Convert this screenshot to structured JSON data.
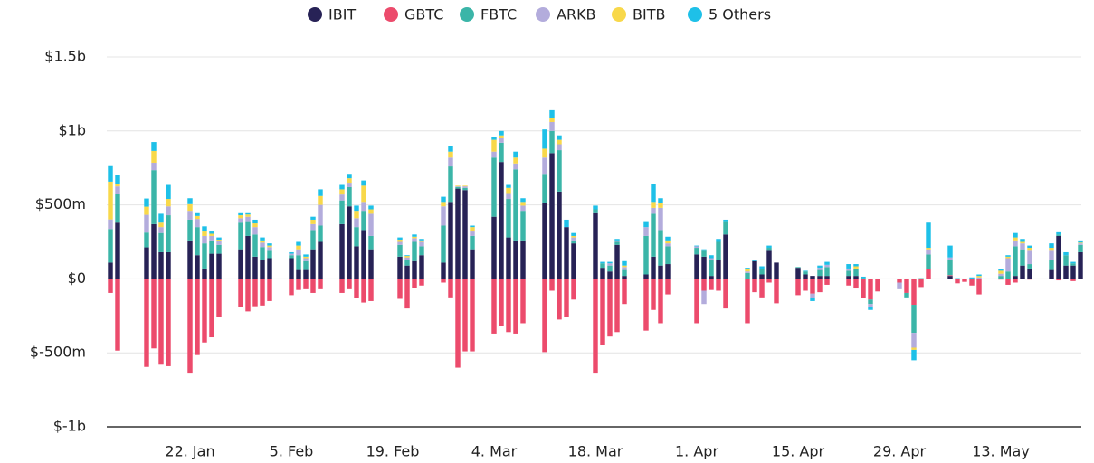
{
  "chart_data": {
    "type": "stacked-bar",
    "legend": "top",
    "categories": [
      null,
      null,
      null,
      null,
      null,
      null,
      null,
      null,
      null,
      null,
      null,
      "22. Jan",
      null,
      null,
      null,
      null,
      null,
      null,
      null,
      null,
      null,
      null,
      null,
      null,
      null,
      "5. Feb",
      null,
      null,
      null,
      null,
      null,
      null,
      null,
      null,
      null,
      null,
      null,
      null,
      null,
      "19. Feb",
      null,
      null,
      null,
      null,
      null,
      null,
      null,
      null,
      null,
      null,
      null,
      null,
      null,
      "4. Mar",
      null,
      null,
      null,
      null,
      null,
      null,
      null,
      null,
      null,
      null,
      null,
      null,
      null,
      "18. Mar",
      null,
      null,
      null,
      null,
      null,
      null,
      null,
      null,
      null,
      null,
      null,
      null,
      null,
      "1. Apr",
      null,
      null,
      null,
      null,
      null,
      null,
      null,
      null,
      null,
      null,
      null,
      null,
      null,
      "15. Apr",
      null,
      null,
      null,
      null,
      null,
      null,
      null,
      null,
      null,
      null,
      null,
      null,
      null,
      "29. Apr",
      null,
      null,
      null,
      null,
      null,
      null,
      null,
      null,
      null,
      null,
      null,
      null,
      null,
      "13. May",
      null,
      null,
      null,
      null,
      null,
      null,
      null,
      null,
      null,
      null,
      null
    ],
    "ylim": [
      -1000,
      1500
    ],
    "yticks": [
      {
        "value": -1000,
        "label": "$-1b"
      },
      {
        "value": -500,
        "label": "$-500m"
      },
      {
        "value": 0,
        "label": "$0"
      },
      {
        "value": 500,
        "label": "$500m"
      },
      {
        "value": 1000,
        "label": "$1b"
      },
      {
        "value": 1500,
        "label": "$1.5b"
      }
    ],
    "grid": true,
    "series": [
      {
        "name": "IBIT",
        "color": "#272256",
        "values": [
          110,
          380,
          null,
          null,
          null,
          213,
          370,
          180,
          180,
          null,
          null,
          260,
          160,
          70,
          170,
          170,
          null,
          null,
          200,
          290,
          150,
          130,
          140,
          null,
          null,
          140,
          60,
          60,
          200,
          250,
          null,
          null,
          370,
          490,
          220,
          330,
          200,
          null,
          null,
          null,
          150,
          90,
          120,
          160,
          null,
          null,
          110,
          520,
          610,
          600,
          200,
          null,
          null,
          420,
          790,
          280,
          260,
          260,
          null,
          null,
          510,
          850,
          590,
          350,
          240,
          null,
          null,
          450,
          75,
          50,
          230,
          20,
          null,
          null,
          30,
          150,
          90,
          100,
          null,
          null,
          null,
          165,
          150,
          20,
          130,
          300,
          null,
          null,
          0,
          120,
          30,
          190,
          110,
          null,
          null,
          75,
          30,
          20,
          20,
          20,
          null,
          null,
          20,
          20,
          0,
          0,
          0,
          null,
          null,
          0,
          0,
          0,
          0,
          0,
          null,
          null,
          20,
          0,
          0,
          0,
          0,
          null,
          null,
          0,
          0,
          20,
          90,
          70,
          null,
          null,
          60,
          290,
          90,
          90,
          180
        ]
      },
      {
        "name": "GBTC",
        "color": "#ec4b6c",
        "values": [
          -95,
          -485,
          null,
          null,
          null,
          -595,
          -470,
          -580,
          -590,
          null,
          null,
          -640,
          -515,
          -430,
          -395,
          -255,
          null,
          null,
          -190,
          -220,
          -185,
          -180,
          -150,
          null,
          null,
          -110,
          -75,
          -70,
          -95,
          -70,
          null,
          null,
          -95,
          -70,
          -130,
          -160,
          -150,
          null,
          null,
          null,
          -135,
          -200,
          -60,
          -45,
          null,
          null,
          -25,
          -125,
          -600,
          -490,
          -490,
          null,
          null,
          -370,
          -320,
          -360,
          -370,
          -300,
          null,
          null,
          -495,
          -80,
          -275,
          -260,
          -140,
          null,
          null,
          -640,
          -445,
          -390,
          -360,
          -170,
          null,
          null,
          -350,
          -210,
          -300,
          -105,
          null,
          null,
          null,
          -300,
          -80,
          -75,
          -80,
          -200,
          null,
          null,
          -300,
          -90,
          -125,
          -25,
          -165,
          null,
          null,
          -110,
          -80,
          -100,
          -90,
          -40,
          null,
          null,
          -45,
          -65,
          -130,
          -140,
          -85,
          null,
          null,
          -25,
          -95,
          -175,
          -55,
          65,
          null,
          null,
          5,
          -30,
          -20,
          -45,
          -105,
          null,
          null,
          -5,
          -40,
          -25,
          0,
          -5,
          null,
          null,
          0,
          -10,
          0,
          -15,
          0
        ]
      },
      {
        "name": "FBTC",
        "color": "#3bb5a8",
        "values": [
          227,
          195,
          null,
          null,
          null,
          100,
          365,
          130,
          250,
          null,
          null,
          140,
          190,
          170,
          90,
          60,
          null,
          null,
          180,
          100,
          150,
          85,
          50,
          null,
          null,
          20,
          100,
          60,
          130,
          110,
          null,
          null,
          160,
          130,
          130,
          130,
          90,
          null,
          null,
          null,
          80,
          40,
          130,
          60,
          null,
          null,
          250,
          240,
          10,
          15,
          90,
          null,
          null,
          400,
          130,
          260,
          480,
          200,
          null,
          null,
          200,
          150,
          280,
          0,
          20,
          null,
          null,
          20,
          30,
          40,
          20,
          40,
          null,
          null,
          260,
          290,
          240,
          120,
          null,
          null,
          null,
          45,
          40,
          110,
          120,
          90,
          null,
          null,
          40,
          0,
          35,
          20,
          0,
          null,
          null,
          5,
          20,
          0,
          40,
          60,
          null,
          null,
          35,
          50,
          5,
          -30,
          0,
          null,
          null,
          0,
          -30,
          -190,
          5,
          100,
          null,
          null,
          100,
          0,
          0,
          0,
          0,
          null,
          null,
          20,
          50,
          200,
          110,
          30,
          null,
          null,
          70,
          10,
          70,
          15,
          50
        ]
      },
      {
        "name": "ARKB",
        "color": "#b3acdc",
        "values": [
          65,
          50,
          null,
          null,
          null,
          120,
          50,
          40,
          60,
          null,
          null,
          60,
          55,
          50,
          30,
          25,
          null,
          null,
          30,
          30,
          50,
          30,
          25,
          null,
          null,
          10,
          40,
          20,
          40,
          140,
          null,
          null,
          40,
          30,
          60,
          60,
          150,
          null,
          null,
          null,
          20,
          15,
          25,
          30,
          null,
          null,
          130,
          60,
          5,
          10,
          30,
          null,
          null,
          40,
          30,
          40,
          40,
          35,
          null,
          null,
          110,
          60,
          40,
          0,
          20,
          null,
          null,
          0,
          0,
          15,
          10,
          20,
          null,
          null,
          60,
          40,
          150,
          20,
          null,
          null,
          null,
          10,
          -90,
          10,
          0,
          0,
          null,
          null,
          10,
          0,
          0,
          0,
          0,
          null,
          null,
          0,
          0,
          -30,
          15,
          15,
          null,
          null,
          15,
          0,
          0,
          -20,
          0,
          null,
          null,
          -45,
          0,
          -100,
          0,
          35,
          null,
          null,
          20,
          0,
          0,
          0,
          10,
          null,
          null,
          15,
          90,
          40,
          40,
          90,
          null,
          null,
          60,
          0,
          0,
          0,
          10
        ]
      },
      {
        "name": "BITB",
        "color": "#f8d84a",
        "values": [
          255,
          15,
          null,
          null,
          null,
          55,
          80,
          30,
          50,
          null,
          null,
          45,
          20,
          30,
          15,
          10,
          null,
          null,
          20,
          15,
          25,
          15,
          10,
          null,
          null,
          0,
          25,
          10,
          30,
          60,
          null,
          null,
          35,
          30,
          50,
          110,
          30,
          null,
          null,
          null,
          15,
          10,
          10,
          10,
          null,
          null,
          30,
          40,
          5,
          5,
          30,
          null,
          null,
          80,
          20,
          35,
          40,
          25,
          null,
          null,
          60,
          30,
          30,
          0,
          10,
          null,
          null,
          0,
          0,
          0,
          0,
          10,
          null,
          null,
          0,
          40,
          30,
          20,
          null,
          null,
          null,
          0,
          0,
          0,
          0,
          0,
          null,
          null,
          15,
          0,
          0,
          0,
          0,
          null,
          null,
          0,
          0,
          0,
          0,
          0,
          null,
          null,
          0,
          15,
          0,
          0,
          0,
          null,
          null,
          0,
          0,
          -15,
          0,
          10,
          null,
          null,
          0,
          0,
          0,
          0,
          10,
          null,
          null,
          20,
          10,
          20,
          10,
          20,
          null,
          null,
          20,
          0,
          0,
          0,
          5
        ]
      },
      {
        "name": "5 Others",
        "color": "#1ec0e8",
        "values": [
          105,
          60,
          null,
          null,
          null,
          55,
          60,
          60,
          95,
          null,
          null,
          40,
          25,
          35,
          15,
          15,
          null,
          null,
          20,
          15,
          25,
          20,
          15,
          null,
          null,
          10,
          25,
          15,
          20,
          45,
          null,
          null,
          30,
          30,
          35,
          35,
          25,
          null,
          null,
          null,
          15,
          5,
          15,
          10,
          null,
          null,
          35,
          40,
          0,
          0,
          10,
          null,
          null,
          20,
          30,
          20,
          40,
          25,
          null,
          null,
          130,
          50,
          30,
          50,
          20,
          null,
          null,
          25,
          10,
          10,
          10,
          30,
          null,
          null,
          40,
          120,
          35,
          25,
          null,
          null,
          null,
          5,
          10,
          20,
          20,
          10,
          null,
          null,
          10,
          10,
          20,
          15,
          0,
          null,
          null,
          0,
          5,
          -20,
          15,
          20,
          null,
          null,
          30,
          15,
          10,
          -20,
          0,
          null,
          null,
          0,
          0,
          -70,
          0,
          170,
          null,
          null,
          80,
          5,
          0,
          10,
          10,
          null,
          null,
          10,
          10,
          30,
          20,
          15,
          null,
          null,
          30,
          15,
          20,
          10,
          15
        ]
      }
    ]
  }
}
